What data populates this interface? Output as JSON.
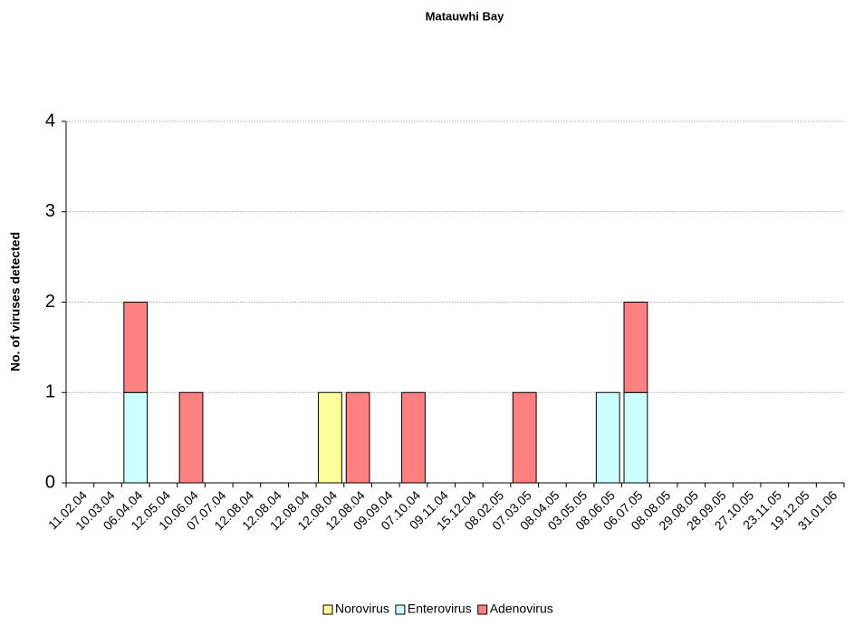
{
  "chart_data": {
    "type": "stacked_bar",
    "title": "Matauwhi Bay",
    "ylabel": "No. of viruses detected",
    "categories": [
      "11.02.04",
      "10.03.04",
      "06.04.04",
      "12.05.04",
      "10.06.04",
      "07.07.04",
      "12.08.04",
      "12.08.04",
      "12.08.04",
      "12.08.04",
      "12.08.04",
      "09.09.04",
      "07.10.04",
      "09.11.04",
      "15.12.04",
      "08.02.05",
      "07.03.05",
      "08.04.05",
      "03.05.05",
      "08.06.05",
      "06.07.05",
      "08.08.05",
      "29.08.05",
      "28.09.05",
      "27.10.05",
      "23.11.05",
      "19.12.05",
      "31.01.06"
    ],
    "series": [
      {
        "name": "Norovirus",
        "color": "#ffff99",
        "values": [
          0,
          0,
          0,
          0,
          0,
          0,
          0,
          0,
          0,
          1,
          0,
          0,
          0,
          0,
          0,
          0,
          0,
          0,
          0,
          0,
          0,
          0,
          0,
          0,
          0,
          0,
          0,
          0
        ]
      },
      {
        "name": "Enterovirus",
        "color": "#ccffff",
        "values": [
          0,
          0,
          1,
          0,
          0,
          0,
          0,
          0,
          0,
          0,
          0,
          0,
          0,
          0,
          0,
          0,
          0,
          0,
          0,
          1,
          1,
          0,
          0,
          0,
          0,
          0,
          0,
          0
        ]
      },
      {
        "name": "Adenovirus",
        "color": "#ff8080",
        "values": [
          0,
          0,
          1,
          0,
          1,
          0,
          0,
          0,
          0,
          0,
          1,
          0,
          1,
          0,
          0,
          0,
          1,
          0,
          0,
          0,
          1,
          0,
          0,
          0,
          0,
          0,
          0,
          0
        ]
      }
    ],
    "ylim": [
      0,
      4
    ],
    "yticks": [
      0,
      1,
      2,
      3,
      4
    ],
    "grid": true,
    "legend": "bottom"
  }
}
